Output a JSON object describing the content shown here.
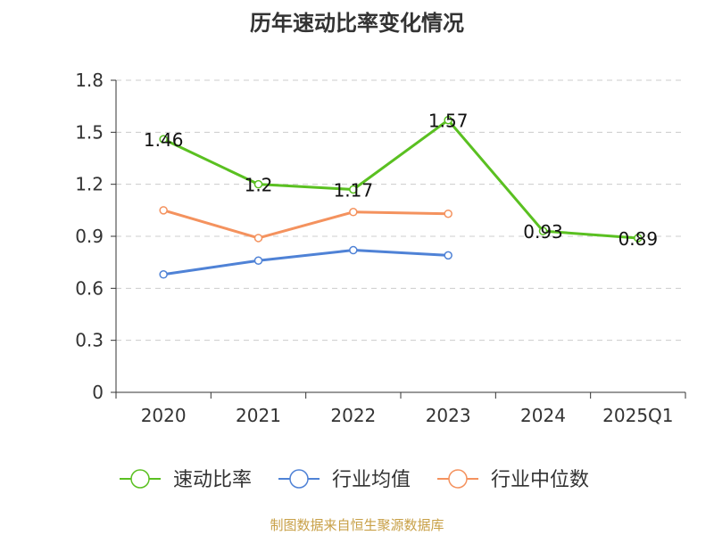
{
  "chart_data": {
    "type": "line",
    "title": "历年速动比率变化情况",
    "categories": [
      "2020",
      "2021",
      "2022",
      "2023",
      "2024",
      "2025Q1"
    ],
    "ylim": [
      0,
      1.8
    ],
    "yticks": [
      "0",
      "0.3",
      "0.6",
      "0.9",
      "1.2",
      "1.5",
      "1.8"
    ],
    "grid": true,
    "legend_position": "bottom",
    "series": [
      {
        "name": "速动比率",
        "color": "#5ac021",
        "values": [
          1.46,
          1.2,
          1.17,
          1.57,
          0.93,
          0.89
        ],
        "labels": [
          "1.46",
          "1.2",
          "1.17",
          "1.57",
          "0.93",
          "0.89"
        ]
      },
      {
        "name": "行业均值",
        "color": "#4f82d6",
        "values": [
          0.68,
          0.76,
          0.82,
          0.79,
          null,
          null
        ]
      },
      {
        "name": "行业中位数",
        "color": "#f4925e",
        "values": [
          1.05,
          0.89,
          1.04,
          1.03,
          null,
          null
        ]
      }
    ]
  },
  "source": "制图数据来自恒生聚源数据库"
}
